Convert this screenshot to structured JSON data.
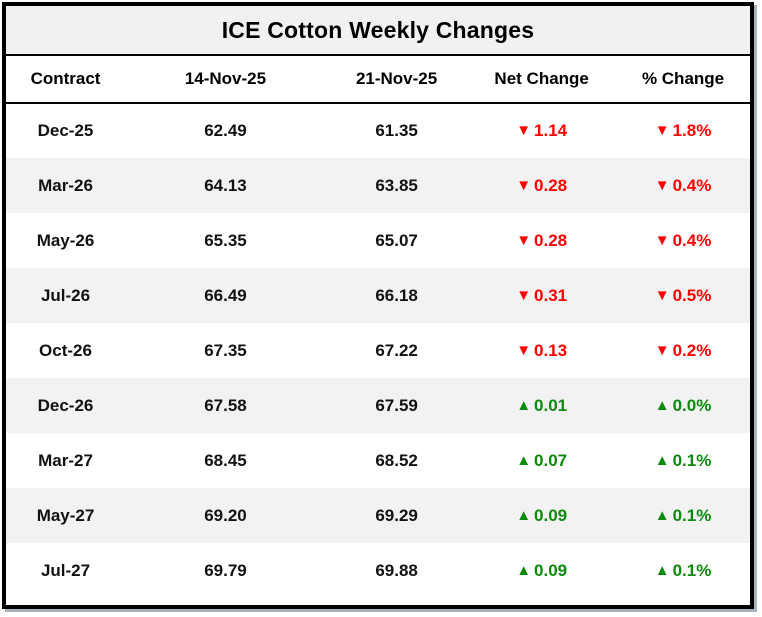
{
  "title": "ICE Cotton Weekly Changes",
  "columns": [
    "Contract",
    "14-Nov-25",
    "21-Nov-25",
    "Net Change",
    "% Change"
  ],
  "symbols": {
    "down": "▼",
    "up": "▲"
  },
  "colors": {
    "down": "#fe0000",
    "up": "#0b8a0b",
    "stripe": "#f2f2f2",
    "title_bg": "#f1f1f1",
    "border": "#000000",
    "shadow": "#a9b3bd"
  },
  "rows": [
    {
      "contract": "Dec-25",
      "prev": "62.49",
      "curr": "61.35",
      "net": "1.14",
      "pct": "1.8%",
      "direction": "down"
    },
    {
      "contract": "Mar-26",
      "prev": "64.13",
      "curr": "63.85",
      "net": "0.28",
      "pct": "0.4%",
      "direction": "down"
    },
    {
      "contract": "May-26",
      "prev": "65.35",
      "curr": "65.07",
      "net": "0.28",
      "pct": "0.4%",
      "direction": "down"
    },
    {
      "contract": "Jul-26",
      "prev": "66.49",
      "curr": "66.18",
      "net": "0.31",
      "pct": "0.5%",
      "direction": "down"
    },
    {
      "contract": "Oct-26",
      "prev": "67.35",
      "curr": "67.22",
      "net": "0.13",
      "pct": "0.2%",
      "direction": "down"
    },
    {
      "contract": "Dec-26",
      "prev": "67.58",
      "curr": "67.59",
      "net": "0.01",
      "pct": "0.0%",
      "direction": "up"
    },
    {
      "contract": "Mar-27",
      "prev": "68.45",
      "curr": "68.52",
      "net": "0.07",
      "pct": "0.1%",
      "direction": "up"
    },
    {
      "contract": "May-27",
      "prev": "69.20",
      "curr": "69.29",
      "net": "0.09",
      "pct": "0.1%",
      "direction": "up"
    },
    {
      "contract": "Jul-27",
      "prev": "69.79",
      "curr": "69.88",
      "net": "0.09",
      "pct": "0.1%",
      "direction": "up"
    }
  ],
  "chart_data": {
    "type": "table",
    "title": "ICE Cotton Weekly Changes",
    "columns": [
      "Contract",
      "14-Nov-25",
      "21-Nov-25",
      "Net Change",
      "% Change"
    ],
    "rows": [
      [
        "Dec-25",
        62.49,
        61.35,
        -1.14,
        -1.8
      ],
      [
        "Mar-26",
        64.13,
        63.85,
        -0.28,
        -0.4
      ],
      [
        "May-26",
        65.35,
        65.07,
        -0.28,
        -0.4
      ],
      [
        "Jul-26",
        66.49,
        66.18,
        -0.31,
        -0.5
      ],
      [
        "Oct-26",
        67.35,
        67.22,
        -0.13,
        -0.2
      ],
      [
        "Dec-26",
        67.58,
        67.59,
        0.01,
        0.0
      ],
      [
        "Mar-27",
        68.45,
        68.52,
        0.07,
        0.1
      ],
      [
        "May-27",
        69.2,
        69.29,
        0.09,
        0.1
      ],
      [
        "Jul-27",
        69.79,
        69.88,
        0.09,
        0.1
      ]
    ],
    "notes": "Negative net/% changes rendered in red with down-triangle; positive in green with up-triangle. Percent values shown with % suffix."
  }
}
